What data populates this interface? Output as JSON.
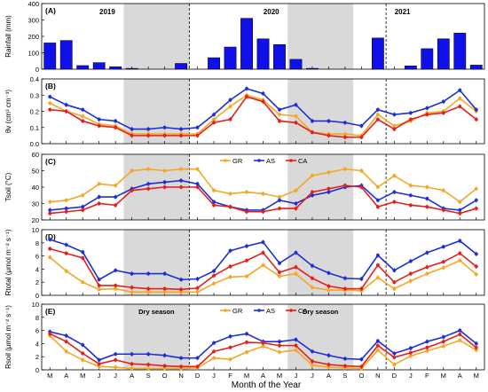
{
  "figure": {
    "xlabel": "Month of the Year",
    "x_ticks": [
      "M",
      "A",
      "M",
      "J",
      "J",
      "A",
      "S",
      "O",
      "N",
      "D",
      "J",
      "F",
      "M",
      "A",
      "M",
      "J",
      "J",
      "A",
      "S",
      "O",
      "N",
      "D",
      "J",
      "F",
      "M",
      "A",
      "M"
    ],
    "year_labels": [
      "2019",
      "2020",
      "2021"
    ],
    "dry_season_label": "Dry season",
    "dry_season_spans": [
      [
        4.5,
        8.5
      ],
      [
        14.5,
        18.5
      ]
    ],
    "year_dividers": [
      8.5,
      20.5
    ],
    "colors": {
      "GR": "#f5a623",
      "AS": "#1f2fd6",
      "CA": "#e3201b",
      "bar": "#1010e8",
      "dry": "#d9d9d9"
    }
  },
  "chart_data": [
    {
      "type": "bar",
      "panel": "(A)",
      "ylabel": "Rainfall (mm)",
      "ylim": [
        0,
        400
      ],
      "yticks": [
        0,
        100,
        200,
        300,
        400
      ],
      "values": [
        160,
        175,
        22,
        40,
        15,
        5,
        0,
        0,
        35,
        0,
        70,
        135,
        310,
        185,
        150,
        60,
        5,
        0,
        0,
        0,
        190,
        0,
        20,
        125,
        185,
        220,
        25
      ]
    },
    {
      "type": "line",
      "panel": "(B)",
      "ylabel": "θv (cm³ cm⁻³)",
      "ylim": [
        0.0,
        0.4
      ],
      "yticks": [
        0.0,
        0.1,
        0.2,
        0.3,
        0.4
      ],
      "yticklabels": [
        "0.0",
        "0.1",
        "0.2",
        "0.3",
        "0.4"
      ],
      "series": [
        {
          "name": "GR",
          "values": [
            0.25,
            0.2,
            0.17,
            0.12,
            0.11,
            0.06,
            0.06,
            0.06,
            0.06,
            0.06,
            0.15,
            0.23,
            0.3,
            0.27,
            0.18,
            0.17,
            0.07,
            0.06,
            0.06,
            0.05,
            0.18,
            0.11,
            0.14,
            0.19,
            0.2,
            0.28,
            0.2
          ]
        },
        {
          "name": "AS",
          "values": [
            0.29,
            0.24,
            0.21,
            0.15,
            0.14,
            0.09,
            0.09,
            0.1,
            0.09,
            0.1,
            0.18,
            0.27,
            0.34,
            0.31,
            0.21,
            0.24,
            0.14,
            0.14,
            0.13,
            0.11,
            0.21,
            0.18,
            0.19,
            0.22,
            0.26,
            0.33,
            0.21
          ]
        },
        {
          "name": "CA",
          "values": [
            0.21,
            0.2,
            0.14,
            0.11,
            0.1,
            0.05,
            0.05,
            0.05,
            0.05,
            0.05,
            0.13,
            0.15,
            0.29,
            0.26,
            0.14,
            0.13,
            0.07,
            0.05,
            0.04,
            0.04,
            0.15,
            0.09,
            0.15,
            0.18,
            0.19,
            0.23,
            0.15
          ]
        }
      ]
    },
    {
      "type": "line",
      "panel": "(C)",
      "ylabel": "Tsoil (°C)",
      "ylim": [
        20,
        60
      ],
      "yticks": [
        20,
        30,
        40,
        50,
        60
      ],
      "legend": "top-center",
      "series": [
        {
          "name": "GR",
          "values": [
            31,
            32,
            35,
            42,
            41,
            50,
            51,
            50,
            51,
            51,
            38,
            36,
            37,
            36,
            34,
            38,
            47,
            49,
            51,
            50,
            40,
            47,
            41,
            40,
            38,
            31,
            39
          ]
        },
        {
          "name": "AS",
          "values": [
            26,
            27,
            28,
            34,
            34,
            39,
            42,
            43,
            44,
            42,
            31,
            28,
            26,
            26,
            32,
            30,
            35,
            37,
            40,
            41,
            32,
            37,
            35,
            33,
            27,
            26,
            32
          ]
        },
        {
          "name": "CA",
          "values": [
            24,
            25,
            26,
            30,
            29,
            38,
            39,
            40,
            40,
            40,
            29,
            28,
            25,
            25,
            27,
            27,
            37,
            39,
            41,
            40,
            28,
            31,
            29,
            28,
            26,
            24,
            27
          ]
        }
      ]
    },
    {
      "type": "line",
      "panel": "(D)",
      "ylabel": "Rtotal (μmol m⁻² s⁻¹)",
      "ylim": [
        0,
        10
      ],
      "yticks": [
        0,
        2,
        4,
        6,
        8,
        10
      ],
      "series": [
        {
          "name": "GR",
          "values": [
            5.8,
            3.7,
            2.0,
            0.9,
            1.0,
            0.5,
            0.5,
            0.5,
            0.5,
            0.5,
            1.8,
            2.8,
            2.9,
            4.6,
            2.9,
            3.3,
            1.2,
            0.8,
            0.8,
            0.7,
            2.7,
            1.0,
            2.2,
            3.3,
            4.2,
            5.3,
            3.2
          ]
        },
        {
          "name": "AS",
          "values": [
            8.5,
            7.7,
            6.6,
            2.4,
            3.8,
            3.3,
            3.3,
            3.3,
            2.4,
            2.5,
            3.7,
            6.8,
            7.5,
            8.1,
            4.9,
            6.5,
            4.5,
            3.4,
            2.6,
            2.5,
            6.1,
            3.8,
            5.2,
            6.5,
            7.4,
            8.3,
            6.3
          ]
        },
        {
          "name": "CA",
          "values": [
            7.1,
            6.4,
            5.7,
            1.5,
            1.5,
            1.2,
            1.0,
            1.0,
            0.9,
            1.1,
            3.0,
            4.4,
            5.3,
            6.5,
            3.5,
            4.3,
            2.6,
            1.4,
            1.0,
            1.0,
            4.6,
            2.0,
            3.3,
            4.3,
            5.1,
            6.4,
            4.4
          ]
        }
      ]
    },
    {
      "type": "line",
      "panel": "(E)",
      "ylabel": "Rsoil (μmol m⁻² s⁻¹)",
      "ylim": [
        0,
        10
      ],
      "yticks": [
        0,
        2,
        4,
        6,
        8,
        10
      ],
      "legend": "top-center",
      "series": [
        {
          "name": "GR",
          "values": [
            5.2,
            2.8,
            1.5,
            0.5,
            0.4,
            0.2,
            0.2,
            0.2,
            0.2,
            0.3,
            1.8,
            1.6,
            2.7,
            3.6,
            2.7,
            3.0,
            0.7,
            0.4,
            0.3,
            0.2,
            3.0,
            0.8,
            2.1,
            2.9,
            3.6,
            4.5,
            3.0
          ]
        },
        {
          "name": "AS",
          "values": [
            5.8,
            5.2,
            3.8,
            1.5,
            2.4,
            2.4,
            2.4,
            2.2,
            1.8,
            1.8,
            4.1,
            5.1,
            5.5,
            4.3,
            4.3,
            4.6,
            2.8,
            2.2,
            1.7,
            1.6,
            4.4,
            2.5,
            3.3,
            4.3,
            5.0,
            6.0,
            4.0
          ]
        },
        {
          "name": "CA",
          "values": [
            5.5,
            4.3,
            2.5,
            0.9,
            1.5,
            0.9,
            0.8,
            0.6,
            0.5,
            0.5,
            2.8,
            3.4,
            4.2,
            4.1,
            3.7,
            3.7,
            1.3,
            0.8,
            0.6,
            0.5,
            3.7,
            1.9,
            2.6,
            3.4,
            4.3,
            5.4,
            3.4
          ]
        }
      ]
    }
  ]
}
